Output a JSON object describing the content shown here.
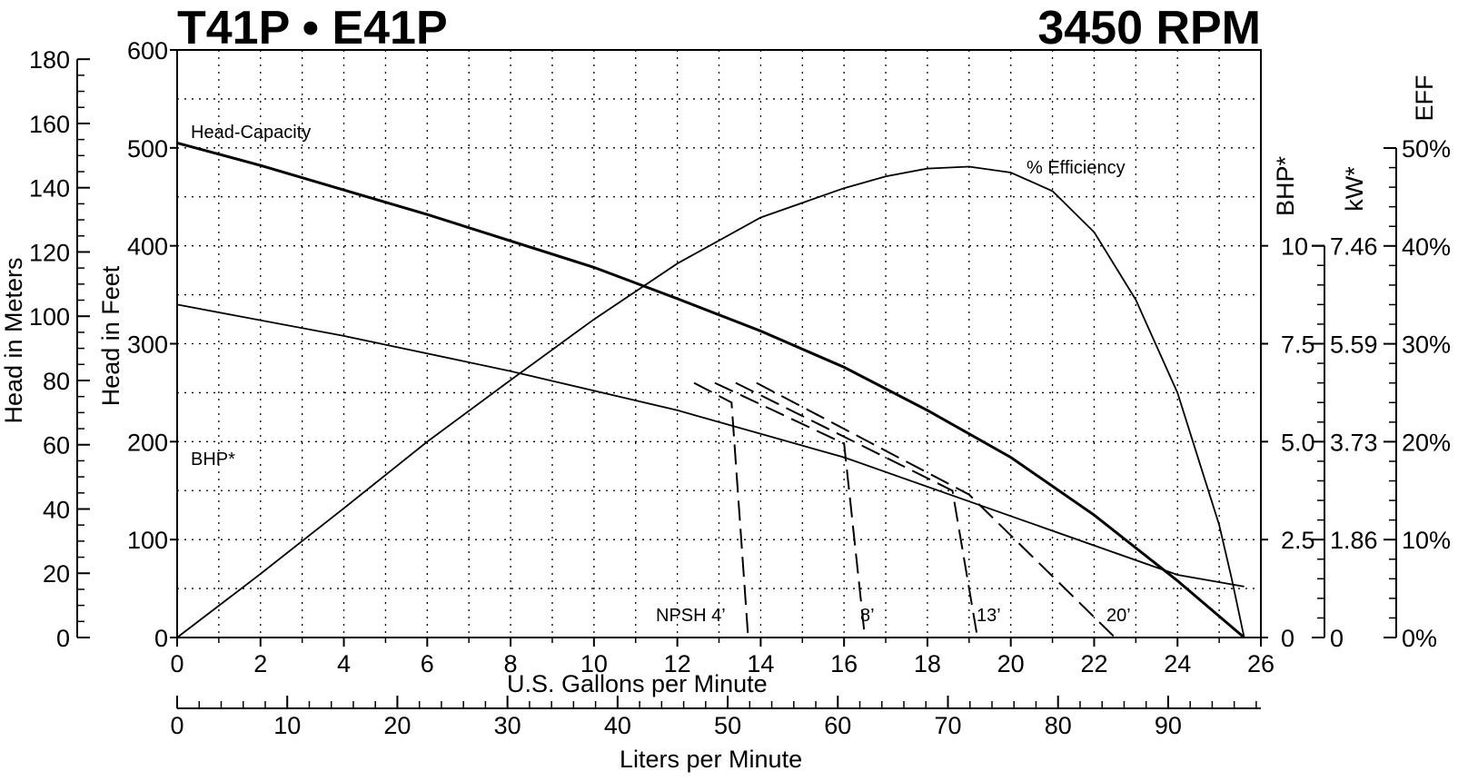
{
  "chart_data": {
    "type": "line",
    "title_left": "T41P • E41P",
    "title_right": "3450 RPM",
    "xlabel": "U.S. Gallons per Minute",
    "xlabel_secondary": "Liters per Minute",
    "ylabel_feet": "Head in Feet",
    "ylabel_meters": "Head in Meters",
    "ylabel_bhp": "BHP*",
    "ylabel_kw": "kW*",
    "ylabel_eff": "EFF",
    "grid": true,
    "xlim": [
      0,
      26
    ],
    "ylim_feet": [
      0,
      600
    ],
    "x_ticks": [
      "0",
      "2",
      "4",
      "6",
      "8",
      "10",
      "12",
      "14",
      "16",
      "18",
      "20",
      "22",
      "24",
      "26"
    ],
    "y_ticks_feet": [
      "0",
      "100",
      "200",
      "300",
      "400",
      "500",
      "600"
    ],
    "y_ticks_meters": [
      "0",
      "20",
      "40",
      "60",
      "80",
      "100",
      "120",
      "140",
      "160",
      "180"
    ],
    "y_ticks_bhp": [
      "0",
      "2.5",
      "5.0",
      "7.5",
      "10"
    ],
    "y_ticks_kw": [
      "0",
      "1.86",
      "3.73",
      "5.59",
      "7.46"
    ],
    "y_ticks_eff": [
      "0%",
      "10%",
      "20%",
      "30%",
      "40%",
      "50%"
    ],
    "lpm_ticks": [
      "0",
      "10",
      "20",
      "30",
      "40",
      "50",
      "60",
      "70",
      "80",
      "90"
    ],
    "series": [
      {
        "name": "Head-Capacity",
        "unit": "ft",
        "x": [
          0,
          2,
          4,
          6,
          8,
          10,
          12,
          14,
          16,
          18,
          20,
          22,
          24,
          25.6
        ],
        "y": [
          505,
          482,
          457,
          432,
          405,
          378,
          346,
          313,
          276,
          232,
          184,
          125,
          58,
          0
        ]
      },
      {
        "name": "% Efficiency",
        "unit": "%",
        "x": [
          0,
          2,
          4,
          6,
          8,
          10,
          12,
          14,
          16,
          17,
          18,
          19,
          20,
          21,
          22,
          23,
          24,
          25,
          25.3,
          25.6
        ],
        "y": [
          0,
          6.5,
          13.2,
          20,
          26.3,
          32.5,
          38.2,
          42.9,
          45.9,
          47.1,
          47.9,
          48.1,
          47.5,
          45.6,
          41.4,
          34.5,
          25,
          11.5,
          6,
          0
        ]
      },
      {
        "name": "BHP*",
        "unit": "hp",
        "x": [
          0,
          4,
          8,
          12,
          16,
          20,
          24,
          25.6
        ],
        "y": [
          8.5,
          7.7,
          6.8,
          5.8,
          4.6,
          3.1,
          1.6,
          1.3
        ]
      }
    ],
    "npsh_curves": [
      {
        "label": "NPSH 4’",
        "x": [
          12.4,
          13.3,
          13.7
        ],
        "y": [
          260,
          240,
          0
        ]
      },
      {
        "label": "8’",
        "x": [
          12.9,
          16.0,
          16.5
        ],
        "y": [
          260,
          198,
          0
        ]
      },
      {
        "label": "13’",
        "x": [
          13.4,
          18.6,
          19.2
        ],
        "y": [
          260,
          150,
          0
        ]
      },
      {
        "label": "20’",
        "x": [
          13.9,
          19.0,
          22.5
        ],
        "y": [
          260,
          146,
          0
        ]
      }
    ],
    "annotations": {
      "head_capacity": "Head-Capacity",
      "efficiency": "% Efficiency",
      "bhp": "BHP*",
      "npsh4": "NPSH 4’",
      "npsh8": "8’",
      "npsh13": "13’",
      "npsh20": "20’"
    }
  }
}
